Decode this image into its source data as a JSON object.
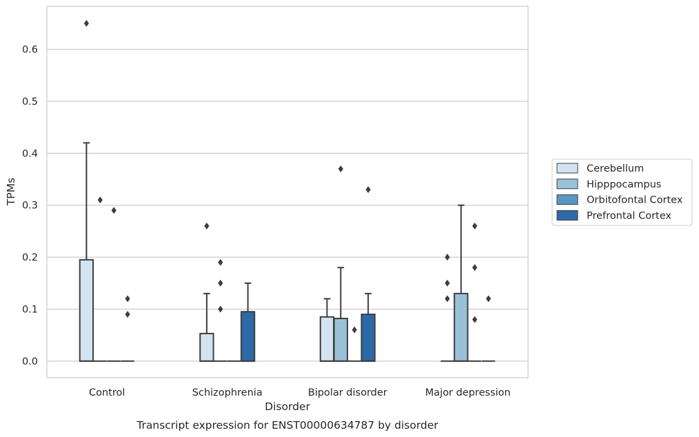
{
  "chart_data": {
    "type": "box",
    "title": "",
    "caption": "Transcript expression for ENST00000634787 by disorder",
    "xlabel": "Disorder",
    "ylabel": "TPMs",
    "ylim": [
      -0.032,
      0.683
    ],
    "yticks": [
      "0.0",
      "0.1",
      "0.2",
      "0.3",
      "0.4",
      "0.5",
      "0.6"
    ],
    "grid": "horizontal",
    "legend_position": "right",
    "categories": [
      "Control",
      "Schizophrenia",
      "Bipolar disorder",
      "Major depression"
    ],
    "series": [
      {
        "name": "Cerebellum",
        "color": "#d4e3f0",
        "boxes": [
          {
            "q1": 0.0,
            "median": 0.0,
            "q3": 0.195,
            "whisker_low": 0.0,
            "whisker_high": 0.42,
            "outliers": [
              0.65
            ]
          },
          {
            "q1": 0.0,
            "median": 0.0,
            "q3": 0.053,
            "whisker_low": 0.0,
            "whisker_high": 0.13,
            "outliers": [
              0.26
            ]
          },
          {
            "q1": 0.0,
            "median": 0.0,
            "q3": 0.085,
            "whisker_low": 0.0,
            "whisker_high": 0.12,
            "outliers": []
          },
          {
            "q1": 0.0,
            "median": 0.0,
            "q3": 0.0,
            "whisker_low": 0.0,
            "whisker_high": 0.0,
            "outliers": [
              0.2,
              0.15,
              0.12
            ]
          }
        ]
      },
      {
        "name": "Hipppocampus",
        "color": "#9ac1d8",
        "boxes": [
          {
            "q1": 0.0,
            "median": 0.0,
            "q3": 0.0,
            "whisker_low": 0.0,
            "whisker_high": 0.0,
            "outliers": [
              0.31
            ]
          },
          {
            "q1": 0.0,
            "median": 0.0,
            "q3": 0.0,
            "whisker_low": 0.0,
            "whisker_high": 0.0,
            "outliers": [
              0.19,
              0.15,
              0.1
            ]
          },
          {
            "q1": 0.0,
            "median": 0.0,
            "q3": 0.082,
            "whisker_low": 0.0,
            "whisker_high": 0.18,
            "outliers": [
              0.37
            ]
          },
          {
            "q1": 0.0,
            "median": 0.0,
            "q3": 0.13,
            "whisker_low": 0.0,
            "whisker_high": 0.3,
            "outliers": []
          }
        ]
      },
      {
        "name": "Orbitofontal Cortex",
        "color": "#5b97c4",
        "boxes": [
          {
            "q1": 0.0,
            "median": 0.0,
            "q3": 0.0,
            "whisker_low": 0.0,
            "whisker_high": 0.0,
            "outliers": [
              0.29
            ]
          },
          {
            "q1": 0.0,
            "median": 0.0,
            "q3": 0.0,
            "whisker_low": 0.0,
            "whisker_high": 0.0,
            "outliers": []
          },
          {
            "q1": 0.0,
            "median": 0.0,
            "q3": 0.0,
            "whisker_low": 0.0,
            "whisker_high": 0.0,
            "outliers": [
              0.06
            ]
          },
          {
            "q1": 0.0,
            "median": 0.0,
            "q3": 0.0,
            "whisker_low": 0.0,
            "whisker_high": 0.0,
            "outliers": [
              0.26,
              0.18,
              0.08
            ]
          }
        ]
      },
      {
        "name": "Prefrontal Cortex",
        "color": "#2d69a6",
        "boxes": [
          {
            "q1": 0.0,
            "median": 0.0,
            "q3": 0.0,
            "whisker_low": 0.0,
            "whisker_high": 0.0,
            "outliers": [
              0.12,
              0.09
            ]
          },
          {
            "q1": 0.0,
            "median": 0.0,
            "q3": 0.095,
            "whisker_low": 0.0,
            "whisker_high": 0.15,
            "outliers": []
          },
          {
            "q1": 0.0,
            "median": 0.0,
            "q3": 0.09,
            "whisker_low": 0.0,
            "whisker_high": 0.13,
            "outliers": [
              0.33
            ]
          },
          {
            "q1": 0.0,
            "median": 0.0,
            "q3": 0.0,
            "whisker_low": 0.0,
            "whisker_high": 0.0,
            "outliers": [
              0.12
            ]
          }
        ]
      }
    ]
  }
}
